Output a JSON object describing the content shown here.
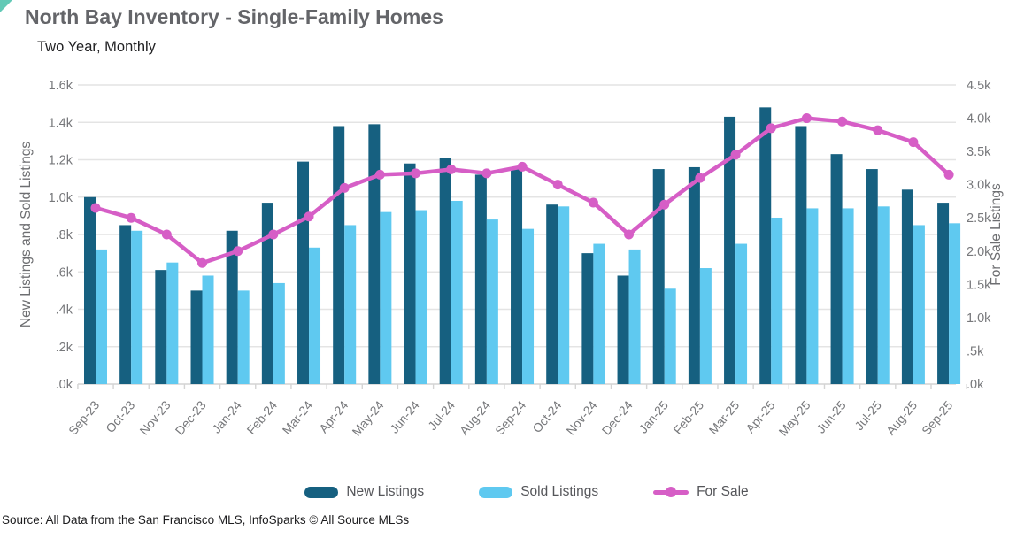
{
  "page": {
    "title": "North Bay Inventory - Single-Family Homes",
    "subtitle": "Two Year, Monthly",
    "source": "Source: All Data from the San Francisco MLS, InfoSparks © All Source MLSs"
  },
  "colors": {
    "new_listings": "#166080",
    "sold_listings": "#5fc9f0",
    "for_sale": "#d65ec6",
    "corner_accent": "#62c9b6",
    "grid": "#e4e4e4",
    "baseline": "#d4d4d4",
    "axis_text": "#77787b",
    "axis_title_text": "#6d6e71"
  },
  "legend": [
    {
      "label": "New Listings"
    },
    {
      "label": "Sold Listings"
    },
    {
      "label": "For Sale"
    }
  ],
  "chart_data": {
    "type": "bar+line combo",
    "title": "North Bay Inventory - Single-Family Homes",
    "subtitle": "Two Year, Monthly",
    "grid": true,
    "legend_position": "bottom",
    "categories": [
      "Sep-23",
      "Oct-23",
      "Nov-23",
      "Dec-23",
      "Jan-24",
      "Feb-24",
      "Mar-24",
      "Apr-24",
      "May-24",
      "Jun-24",
      "Jul-24",
      "Aug-24",
      "Sep-24",
      "Oct-24",
      "Nov-24",
      "Dec-24",
      "Jan-25",
      "Feb-25",
      "Mar-25",
      "Apr-25",
      "May-25",
      "Jun-25",
      "Jul-25",
      "Aug-25",
      "Sep-25"
    ],
    "series": [
      {
        "name": "New Listings",
        "type": "bar",
        "axis": "left",
        "values": [
          1000,
          850,
          610,
          500,
          820,
          970,
          1190,
          1380,
          1390,
          1180,
          1210,
          1120,
          1150,
          960,
          700,
          580,
          1150,
          1160,
          1430,
          1480,
          1380,
          1230,
          1150,
          1040,
          970
        ]
      },
      {
        "name": "Sold Listings",
        "type": "bar",
        "axis": "left",
        "values": [
          720,
          820,
          650,
          580,
          500,
          540,
          730,
          850,
          920,
          930,
          980,
          880,
          830,
          950,
          750,
          720,
          510,
          620,
          750,
          890,
          940,
          940,
          950,
          850,
          860
        ]
      },
      {
        "name": "For Sale",
        "type": "line",
        "axis": "right",
        "values": [
          2650,
          2500,
          2250,
          1820,
          2000,
          2250,
          2520,
          2950,
          3150,
          3170,
          3230,
          3170,
          3270,
          3000,
          2730,
          2250,
          2700,
          3100,
          3450,
          3850,
          4000,
          3950,
          3820,
          3640,
          3150
        ]
      }
    ],
    "left_axis": {
      "label": "New Listings and Sold Listings",
      "min": 0,
      "max": 1600,
      "ticks": [
        "1.6k",
        "1.4k",
        "1.2k",
        "1.0k",
        ".8k",
        ".6k",
        ".4k",
        ".2k",
        ".0k"
      ]
    },
    "right_axis": {
      "label": "For Sale Listings",
      "min": 0,
      "max": 4500,
      "ticks": [
        "4.5k",
        "4.0k",
        "3.5k",
        "3.0k",
        "2.5k",
        "2.0k",
        "1.5k",
        "1.0k",
        ".5k",
        ".0k"
      ]
    }
  }
}
